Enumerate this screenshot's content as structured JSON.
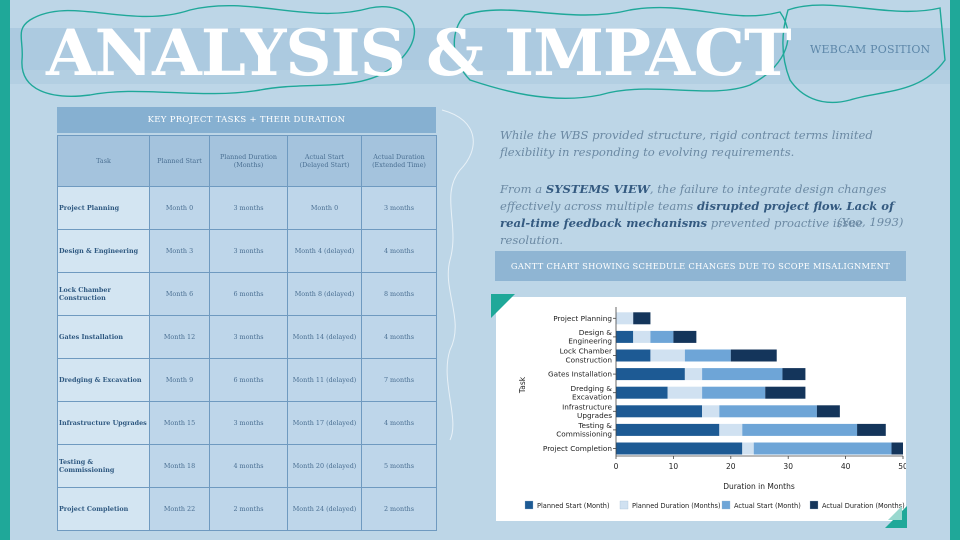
{
  "slide": {
    "title": "ANALYSIS & IMPACT",
    "webcam_label": "WEBCAM POSITION"
  },
  "table": {
    "header": "KEY PROJECT TASKS + THEIR DURATION",
    "columns": [
      "Task",
      "Planned Start",
      "Planned Duration (Months)",
      "Actual Start (Delayed Start)",
      "Actual Duration (Extended Time)"
    ],
    "rows": [
      {
        "task": "Project Planning",
        "planned_start": "Month 0",
        "planned_duration": "3 months",
        "actual_start": "Month 0",
        "actual_duration": "3 months"
      },
      {
        "task": "Design & Engineering",
        "planned_start": "Month 3",
        "planned_duration": "3 months",
        "actual_start": "Month 4 (delayed)",
        "actual_duration": "4 months"
      },
      {
        "task": "Lock Chamber Construction",
        "planned_start": "Month 6",
        "planned_duration": "6 months",
        "actual_start": "Month 8 (delayed)",
        "actual_duration": "8 months"
      },
      {
        "task": "Gates Installation",
        "planned_start": "Month 12",
        "planned_duration": "3 months",
        "actual_start": "Month 14 (delayed)",
        "actual_duration": "4 months"
      },
      {
        "task": "Dredging & Excavation",
        "planned_start": "Month 9",
        "planned_duration": "6 months",
        "actual_start": "Month 11 (delayed)",
        "actual_duration": "7 months"
      },
      {
        "task": "Infrastructure Upgrades",
        "planned_start": "Month 15",
        "planned_duration": "3 months",
        "actual_start": "Month 17 (delayed)",
        "actual_duration": "4 months"
      },
      {
        "task": "Testing & Commissioning",
        "planned_start": "Month 18",
        "planned_duration": "4 months",
        "actual_start": "Month 20 (delayed)",
        "actual_duration": "5 months"
      },
      {
        "task": "Project Completion",
        "planned_start": "Month 22",
        "planned_duration": "2 months",
        "actual_start": "Month 24 (delayed)",
        "actual_duration": "2 months"
      }
    ]
  },
  "text": {
    "p1": "While the WBS provided structure, rigid contract terms limited flexibility in responding to evolving requirements.",
    "p2_a": "From a ",
    "p2_b": "SYSTEMS VIEW",
    "p2_c": ", the failure to integrate design changes effectively across multiple teams ",
    "p2_d": "disrupted project flow. Lack of real-time feedback mechanisms",
    "p2_e": " prevented proactive issue resolution.",
    "citation": "(Yeo, 1993)"
  },
  "gantt_header": "GANTT CHART SHOWING SCHEDULE CHANGES DUE TO SCOPE MISALIGNMENT",
  "colors": {
    "planned_start": "#1d5a94",
    "planned_duration": "#d0e1f1",
    "actual_start": "#6ea5d7",
    "actual_duration": "#14355b"
  },
  "chart_data": {
    "type": "bar",
    "orientation": "horizontal",
    "stacked": true,
    "ylabel": "Task",
    "xlabel": "Duration in Months",
    "xlim": [
      0,
      50
    ],
    "xticks": [
      0,
      10,
      20,
      30,
      40,
      50
    ],
    "grid": false,
    "legend_position": "bottom",
    "categories": [
      "Project Planning",
      "Design & Engineering",
      "Lock Chamber Construction",
      "Gates Installation",
      "Dredging & Excavation",
      "Infrastructure Upgrades",
      "Testing & Commissioning",
      "Project Completion"
    ],
    "category_display": [
      [
        "Project Planning"
      ],
      [
        "Design &",
        "Engineering"
      ],
      [
        "Lock Chamber",
        "Construction"
      ],
      [
        "Gates Installation"
      ],
      [
        "Dredging &",
        "Excavation"
      ],
      [
        "Infrastructure",
        "Upgrades"
      ],
      [
        "Testing &",
        "Commissioning"
      ],
      [
        "Project Completion"
      ]
    ],
    "series": [
      {
        "name": "Planned Start (Month)",
        "values": [
          0,
          3,
          6,
          12,
          9,
          15,
          18,
          22
        ]
      },
      {
        "name": "Planned Duration (Months)",
        "values": [
          3,
          3,
          6,
          3,
          6,
          3,
          4,
          2
        ]
      },
      {
        "name": "Actual Start (Month)",
        "values": [
          0,
          4,
          8,
          14,
          11,
          17,
          20,
          24
        ]
      },
      {
        "name": "Actual Duration (Months)",
        "values": [
          3,
          4,
          8,
          4,
          7,
          4,
          5,
          2
        ]
      }
    ]
  }
}
